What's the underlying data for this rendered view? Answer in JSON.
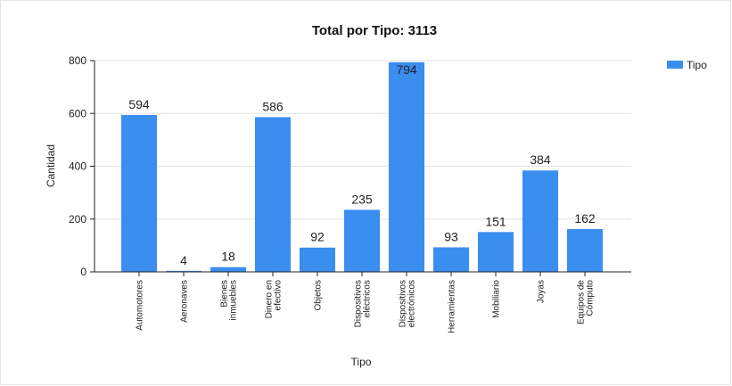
{
  "chart_data": {
    "type": "bar",
    "title": "Total por Tipo: 3113",
    "xlabel": "Tipo",
    "ylabel": "Cantidad",
    "ylim": [
      0,
      800
    ],
    "yticks": [
      "0",
      "200",
      "400",
      "600",
      "800"
    ],
    "grid": true,
    "legend": "top-right",
    "bar_color": "#3a8ef0",
    "series": [
      {
        "name": "Tipo",
        "values": [
          594,
          4,
          18,
          586,
          92,
          235,
          794,
          93,
          151,
          384,
          162
        ],
        "labels": [
          "594",
          "4",
          "18",
          "586",
          "92",
          "235",
          "794",
          "93",
          "151",
          "384",
          "162"
        ]
      }
    ],
    "categories": [
      [
        "Automotores"
      ],
      [
        "Aeronaves"
      ],
      [
        "Bienes",
        "inmuebles"
      ],
      [
        "Dinero en",
        "efectivo"
      ],
      [
        "Objetos"
      ],
      [
        "Dispositivos",
        "eléctricos"
      ],
      [
        "Dispositivos",
        "electrónicos"
      ],
      [
        "Herramientas"
      ],
      [
        "Mobiliario"
      ],
      [
        "Joyas"
      ],
      [
        "Equipos de",
        "Cómputo"
      ]
    ]
  }
}
